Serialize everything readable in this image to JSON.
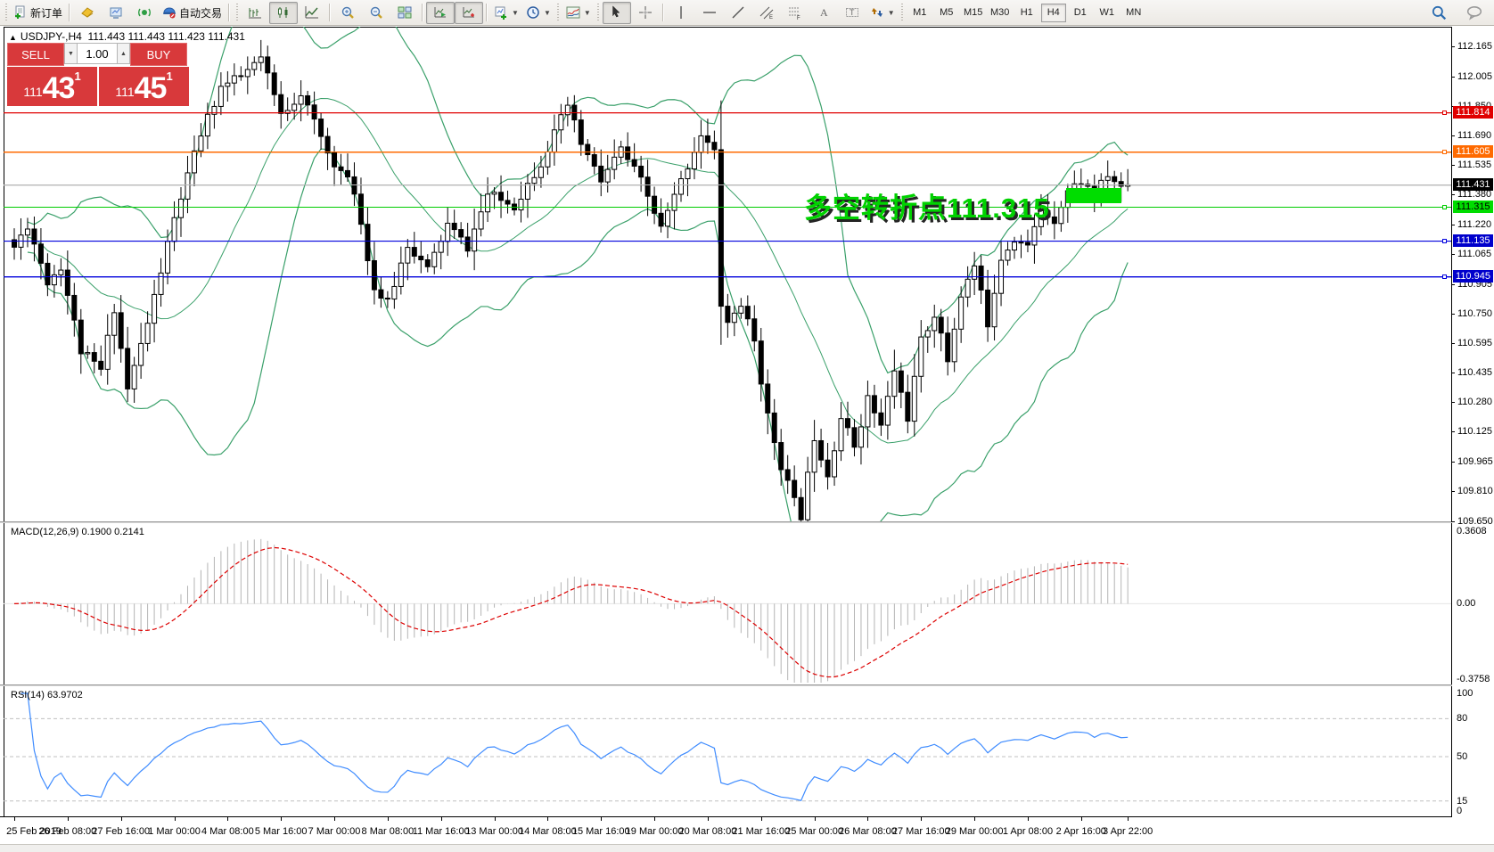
{
  "toolbar": {
    "items": [
      {
        "type": "grip"
      },
      {
        "type": "button",
        "name": "new-order-button",
        "icon": "new-order",
        "label": "新订单"
      },
      {
        "type": "sep"
      },
      {
        "type": "button",
        "name": "market-watch-button",
        "icon": "diamond"
      },
      {
        "type": "button",
        "name": "print-preview-button",
        "icon": "screen"
      },
      {
        "type": "button",
        "name": "signals-button",
        "icon": "signal"
      },
      {
        "type": "button",
        "name": "auto-trading-button",
        "icon": "robot",
        "label": "自动交易"
      },
      {
        "type": "sep"
      },
      {
        "type": "grip"
      },
      {
        "type": "button",
        "name": "bar-chart-button",
        "icon": "bars"
      },
      {
        "type": "button",
        "name": "candlestick-chart-button",
        "icon": "candles",
        "pressed": true
      },
      {
        "type": "button",
        "name": "line-chart-button",
        "icon": "linechart"
      },
      {
        "type": "sep"
      },
      {
        "type": "button",
        "name": "zoom-in-button",
        "icon": "zoom-in"
      },
      {
        "type": "button",
        "name": "zoom-out-button",
        "icon": "zoom-out"
      },
      {
        "type": "button",
        "name": "tile-windows-button",
        "icon": "tile"
      },
      {
        "type": "sep"
      },
      {
        "type": "button",
        "name": "auto-scroll-button",
        "icon": "autoscroll",
        "pressed": true
      },
      {
        "type": "button",
        "name": "chart-shift-button",
        "icon": "shift",
        "pressed": true
      },
      {
        "type": "sep"
      },
      {
        "type": "button",
        "name": "new-chart-dropdown-button",
        "icon": "new-chart",
        "dropdown": true
      },
      {
        "type": "button",
        "name": "profiles-dropdown-button",
        "icon": "clock",
        "dropdown": true
      },
      {
        "type": "grip"
      },
      {
        "type": "button",
        "name": "indicators-dropdown-button",
        "icon": "indicator",
        "dropdown": true
      },
      {
        "type": "grip"
      },
      {
        "type": "button",
        "name": "cursor-button",
        "icon": "cursor",
        "pressed": true
      },
      {
        "type": "button",
        "name": "crosshair-button",
        "icon": "crosshair"
      },
      {
        "type": "sep"
      },
      {
        "type": "button",
        "name": "vertical-line-button",
        "icon": "vline"
      },
      {
        "type": "button",
        "name": "horizontal-line-button",
        "icon": "hline"
      },
      {
        "type": "button",
        "name": "trendline-button",
        "icon": "trendline"
      },
      {
        "type": "button",
        "name": "equidistant-channel-button",
        "icon": "channel"
      },
      {
        "type": "button",
        "name": "fibonacci-button",
        "icon": "fibo"
      },
      {
        "type": "button",
        "name": "text-button",
        "icon": "text-a"
      },
      {
        "type": "button",
        "name": "text-label-button",
        "icon": "text-label"
      },
      {
        "type": "button",
        "name": "arrows-dropdown-button",
        "icon": "arrows",
        "dropdown": true
      },
      {
        "type": "grip"
      }
    ],
    "timeframes": {
      "items": [
        "M1",
        "M5",
        "M15",
        "M30",
        "H1",
        "H4",
        "D1",
        "W1",
        "MN"
      ],
      "active": "H4"
    },
    "right_icons": [
      {
        "name": "search-icon",
        "icon": "search"
      },
      {
        "name": "chat-icon",
        "icon": "chat"
      }
    ]
  },
  "header": {
    "collapse_icon": "▲",
    "symbol": "USDJPY-,H4",
    "ohlc": "111.443 111.443 111.423 111.431"
  },
  "trade_panel": {
    "sell_label": "SELL",
    "buy_label": "BUY",
    "volume": "1.00",
    "spin_down": "▼",
    "spin_up": "▲",
    "sell_price": {
      "prefix": "111",
      "big": "43",
      "sup": "1"
    },
    "buy_price": {
      "prefix": "111",
      "big": "45",
      "sup": "1"
    },
    "panel_color": "#d8393b"
  },
  "chart_data": {
    "type": "candlestick",
    "symbol": "USDJPY-",
    "timeframe": "H4",
    "ohlc_display": {
      "open": "111.443",
      "high": "111.443",
      "low": "111.423",
      "close": "111.431"
    },
    "ylim": [
      109.649,
      112.268
    ],
    "y_ticks": [
      "112.165",
      "112.005",
      "111.850",
      "111.690",
      "111.535",
      "111.380",
      "111.220",
      "111.065",
      "110.905",
      "110.750",
      "110.595",
      "110.435",
      "110.280",
      "110.125",
      "109.965",
      "109.810",
      "109.650"
    ],
    "num_candles": 168,
    "close_waypoints": [
      [
        0,
        111.1
      ],
      [
        2,
        111.22
      ],
      [
        5,
        110.92
      ],
      [
        7,
        111.0
      ],
      [
        10,
        110.55
      ],
      [
        13,
        110.45
      ],
      [
        15,
        110.78
      ],
      [
        17,
        110.35
      ],
      [
        20,
        110.7
      ],
      [
        24,
        111.25
      ],
      [
        28,
        111.7
      ],
      [
        31,
        111.95
      ],
      [
        34,
        112.0
      ],
      [
        37,
        112.1
      ],
      [
        40,
        111.8
      ],
      [
        43,
        111.92
      ],
      [
        47,
        111.6
      ],
      [
        51,
        111.4
      ],
      [
        54,
        110.88
      ],
      [
        56,
        110.8
      ],
      [
        59,
        111.12
      ],
      [
        62,
        110.98
      ],
      [
        65,
        111.22
      ],
      [
        68,
        111.1
      ],
      [
        71,
        111.38
      ],
      [
        75,
        111.32
      ],
      [
        79,
        111.55
      ],
      [
        83,
        111.85
      ],
      [
        85,
        111.65
      ],
      [
        88,
        111.45
      ],
      [
        91,
        111.62
      ],
      [
        94,
        111.45
      ],
      [
        97,
        111.2
      ],
      [
        100,
        111.45
      ],
      [
        103,
        111.7
      ],
      [
        105,
        111.6
      ],
      [
        106,
        110.8
      ],
      [
        107,
        110.7
      ],
      [
        109,
        110.8
      ],
      [
        111,
        110.6
      ],
      [
        113,
        110.2
      ],
      [
        115,
        109.95
      ],
      [
        117,
        109.75
      ],
      [
        118,
        109.68
      ],
      [
        120,
        110.1
      ],
      [
        122,
        109.9
      ],
      [
        124,
        110.2
      ],
      [
        126,
        110.05
      ],
      [
        128,
        110.3
      ],
      [
        130,
        110.15
      ],
      [
        132,
        110.45
      ],
      [
        134,
        110.2
      ],
      [
        136,
        110.6
      ],
      [
        138,
        110.75
      ],
      [
        140,
        110.5
      ],
      [
        142,
        110.85
      ],
      [
        144,
        111.0
      ],
      [
        146,
        110.7
      ],
      [
        148,
        111.05
      ],
      [
        150,
        111.15
      ],
      [
        152,
        111.1
      ],
      [
        154,
        111.3
      ],
      [
        156,
        111.25
      ],
      [
        158,
        111.4
      ],
      [
        160,
        111.45
      ],
      [
        162,
        111.38
      ],
      [
        164,
        111.48
      ],
      [
        166,
        111.42
      ],
      [
        167,
        111.431
      ]
    ],
    "x_labels": [
      [
        0,
        "25 Feb 2019"
      ],
      [
        8,
        "26 Feb 08:00"
      ],
      [
        16,
        "27 Feb 16:00"
      ],
      [
        24,
        "1 Mar 00:00"
      ],
      [
        32,
        "4 Mar 08:00"
      ],
      [
        40,
        "5 Mar 16:00"
      ],
      [
        48,
        "7 Mar 00:00"
      ],
      [
        56,
        "8 Mar 08:00"
      ],
      [
        64,
        "11 Mar 16:00"
      ],
      [
        72,
        "13 Mar 00:00"
      ],
      [
        80,
        "14 Mar 08:00"
      ],
      [
        88,
        "15 Mar 16:00"
      ],
      [
        96,
        "19 Mar 00:00"
      ],
      [
        104,
        "20 Mar 08:00"
      ],
      [
        112,
        "21 Mar 16:00"
      ],
      [
        120,
        "25 Mar 00:00"
      ],
      [
        128,
        "26 Mar 08:00"
      ],
      [
        136,
        "27 Mar 16:00"
      ],
      [
        144,
        "29 Mar 00:00"
      ],
      [
        152,
        "1 Apr 08:00"
      ],
      [
        160,
        "2 Apr 16:00"
      ],
      [
        167,
        "3 Apr 22:00"
      ]
    ],
    "candle_colors": {
      "up_fill": "#ffffff",
      "down_fill": "#000000",
      "outline": "#000000"
    },
    "bollinger": {
      "period": 20,
      "deviation": 2,
      "color": "#3aa06a"
    },
    "levels": [
      {
        "price": "111.814",
        "value": 111.814,
        "line_color": "#e00000",
        "badge_color": "#e00000",
        "text_color": "#ffffff"
      },
      {
        "price": "111.605",
        "value": 111.605,
        "line_color": "#ff6a00",
        "badge_color": "#ff6a00",
        "text_color": "#ffffff"
      },
      {
        "price": "111.431",
        "value": 111.431,
        "line_color": "#b8b8b8",
        "badge_color": "#000000",
        "text_color": "#ffffff",
        "current": true
      },
      {
        "price": "111.315",
        "value": 111.315,
        "line_color": "#00cc00",
        "badge_color": "#00dd00",
        "text_color": "#000000"
      },
      {
        "price": "111.135",
        "value": 111.135,
        "line_color": "#0000dd",
        "badge_color": "#0000cc",
        "text_color": "#ffffff"
      },
      {
        "price": "110.945",
        "value": 110.945,
        "line_color": "#0000dd",
        "badge_color": "#0000cc",
        "text_color": "#ffffff"
      }
    ],
    "annotation": {
      "text": "多空转折点111.315",
      "color": "#00d200"
    },
    "highlight_box": {
      "color": "#00dd00"
    },
    "macd": {
      "label": "MACD(12,26,9)",
      "values": "0.1900 0.2141",
      "fast": 12,
      "slow": 26,
      "signal": 9,
      "axis_labels": [
        [
          "0.3608",
          0.3608
        ],
        [
          "0.00",
          0.0
        ],
        [
          "-0.3758",
          -0.3758
        ]
      ],
      "ylim": [
        -0.392,
        0.4
      ],
      "hist_color": "#b4b4b4",
      "signal_color": "#dd0000"
    },
    "rsi": {
      "label": "RSI(14)",
      "value": "63.9702",
      "period": 14,
      "axis_labels": [
        [
          "100",
          100
        ],
        [
          "80",
          80
        ],
        [
          "50",
          50
        ],
        [
          "15",
          15
        ],
        [
          "0",
          0
        ]
      ],
      "levels": [
        80,
        50,
        15
      ],
      "ylim": [
        0,
        100
      ],
      "line_color": "#3f8cff",
      "level_color": "#c0c0c0"
    }
  }
}
